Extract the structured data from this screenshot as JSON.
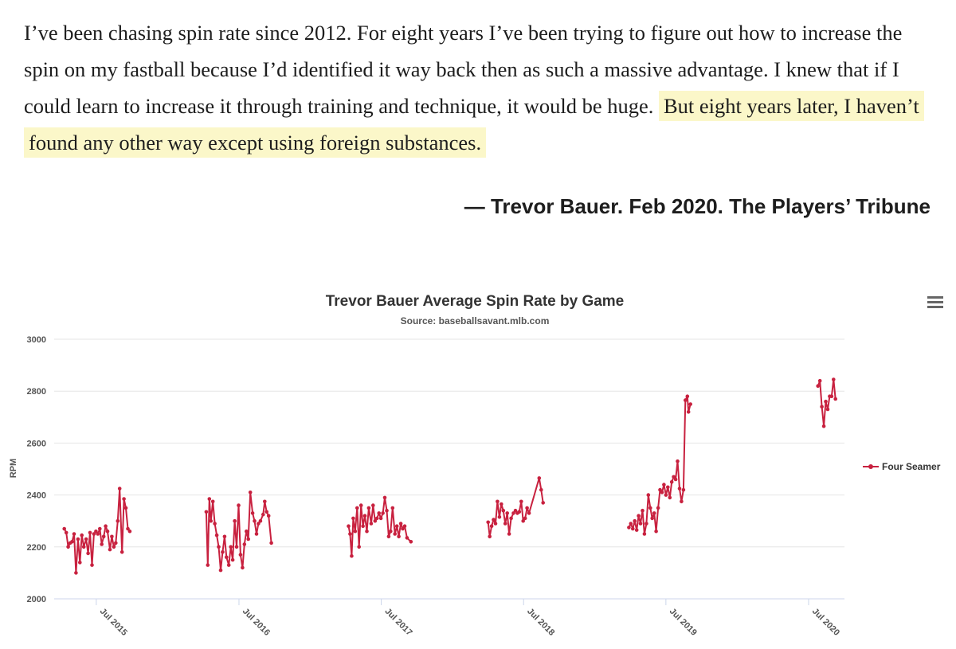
{
  "quote": {
    "text_plain": "I’ve been chasing spin rate since 2012. For eight years I’ve been trying to figure out how to increase the spin on my fastball because I’d identified it way back then as such a massive advantage. I knew that if I could learn to increase it through training and technique, it would be huge. ",
    "text_highlight": "But eight years later, I haven’t found any other way except using foreign substances.",
    "highlight_color": "#fbf7c9"
  },
  "attribution": "— Trevor Bauer. Feb 2020. The Players’ Tribune",
  "menu_icon": "hamburger-menu-icon",
  "chart_data": {
    "type": "line",
    "title": "Trevor Bauer Average Spin Rate by Game",
    "subtitle": "Source: baseballsavant.mlb.com",
    "ylabel": "RPM",
    "xlabel": "",
    "ylim": [
      2000,
      3000
    ],
    "yticks": [
      2000,
      2200,
      2400,
      2600,
      2800,
      3000
    ],
    "xticks": [
      "Jul 2015",
      "Jul 2016",
      "Jul 2017",
      "Jul 2018",
      "Jul 2019",
      "Jul 2020"
    ],
    "grid": true,
    "legend": "right",
    "color": "#c8213f",
    "series": [
      {
        "name": "Four Seamer",
        "segments": [
          [
            [
              "2015-04-10",
              2270
            ],
            [
              "2015-04-15",
              2255
            ],
            [
              "2015-04-20",
              2200
            ],
            [
              "2015-04-25",
              2215
            ],
            [
              "2015-04-30",
              2220
            ],
            [
              "2015-05-05",
              2250
            ],
            [
              "2015-05-10",
              2100
            ],
            [
              "2015-05-15",
              2230
            ],
            [
              "2015-05-20",
              2140
            ],
            [
              "2015-05-25",
              2245
            ],
            [
              "2015-05-30",
              2200
            ],
            [
              "2015-06-05",
              2230
            ],
            [
              "2015-06-10",
              2175
            ],
            [
              "2015-06-15",
              2255
            ],
            [
              "2015-06-20",
              2130
            ],
            [
              "2015-06-25",
              2250
            ],
            [
              "2015-06-30",
              2260
            ],
            [
              "2015-07-05",
              2250
            ],
            [
              "2015-07-10",
              2270
            ],
            [
              "2015-07-15",
              2210
            ],
            [
              "2015-07-20",
              2240
            ],
            [
              "2015-07-25",
              2280
            ],
            [
              "2015-07-30",
              2260
            ],
            [
              "2015-08-05",
              2190
            ],
            [
              "2015-08-10",
              2240
            ],
            [
              "2015-08-15",
              2200
            ],
            [
              "2015-08-20",
              2215
            ],
            [
              "2015-08-25",
              2300
            ],
            [
              "2015-08-30",
              2425
            ],
            [
              "2015-09-05",
              2180
            ],
            [
              "2015-09-10",
              2385
            ],
            [
              "2015-09-15",
              2350
            ],
            [
              "2015-09-20",
              2270
            ],
            [
              "2015-09-25",
              2260
            ]
          ],
          [
            [
              "2016-04-08",
              2335
            ],
            [
              "2016-04-12",
              2130
            ],
            [
              "2016-04-16",
              2385
            ],
            [
              "2016-04-20",
              2300
            ],
            [
              "2016-04-25",
              2375
            ],
            [
              "2016-04-30",
              2290
            ],
            [
              "2016-05-05",
              2245
            ],
            [
              "2016-05-10",
              2200
            ],
            [
              "2016-05-15",
              2110
            ],
            [
              "2016-05-20",
              2180
            ],
            [
              "2016-05-25",
              2240
            ],
            [
              "2016-05-30",
              2160
            ],
            [
              "2016-06-05",
              2130
            ],
            [
              "2016-06-10",
              2200
            ],
            [
              "2016-06-15",
              2150
            ],
            [
              "2016-06-20",
              2300
            ],
            [
              "2016-06-25",
              2200
            ],
            [
              "2016-06-30",
              2360
            ],
            [
              "2016-07-05",
              2170
            ],
            [
              "2016-07-10",
              2120
            ],
            [
              "2016-07-15",
              2210
            ],
            [
              "2016-07-20",
              2260
            ],
            [
              "2016-07-25",
              2230
            ],
            [
              "2016-07-30",
              2410
            ],
            [
              "2016-08-05",
              2330
            ],
            [
              "2016-08-10",
              2300
            ],
            [
              "2016-08-15",
              2250
            ],
            [
              "2016-08-20",
              2290
            ],
            [
              "2016-08-25",
              2300
            ],
            [
              "2016-09-01",
              2325
            ],
            [
              "2016-09-05",
              2375
            ],
            [
              "2016-09-10",
              2335
            ],
            [
              "2016-09-15",
              2320
            ],
            [
              "2016-09-22",
              2215
            ]
          ],
          [
            [
              "2017-04-08",
              2280
            ],
            [
              "2017-04-12",
              2250
            ],
            [
              "2017-04-16",
              2165
            ],
            [
              "2017-04-20",
              2310
            ],
            [
              "2017-04-25",
              2260
            ],
            [
              "2017-04-30",
              2350
            ],
            [
              "2017-05-05",
              2200
            ],
            [
              "2017-05-10",
              2360
            ],
            [
              "2017-05-15",
              2280
            ],
            [
              "2017-05-20",
              2320
            ],
            [
              "2017-05-25",
              2260
            ],
            [
              "2017-05-30",
              2350
            ],
            [
              "2017-06-05",
              2290
            ],
            [
              "2017-06-10",
              2360
            ],
            [
              "2017-06-15",
              2300
            ],
            [
              "2017-06-20",
              2310
            ],
            [
              "2017-06-25",
              2330
            ],
            [
              "2017-06-30",
              2310
            ],
            [
              "2017-07-05",
              2330
            ],
            [
              "2017-07-10",
              2390
            ],
            [
              "2017-07-15",
              2340
            ],
            [
              "2017-07-20",
              2240
            ],
            [
              "2017-07-25",
              2260
            ],
            [
              "2017-07-30",
              2350
            ],
            [
              "2017-08-05",
              2250
            ],
            [
              "2017-08-10",
              2280
            ],
            [
              "2017-08-15",
              2240
            ],
            [
              "2017-08-20",
              2290
            ],
            [
              "2017-08-25",
              2270
            ],
            [
              "2017-08-30",
              2280
            ],
            [
              "2017-09-05",
              2235
            ],
            [
              "2017-09-15",
              2220
            ]
          ],
          [
            [
              "2018-04-01",
              2295
            ],
            [
              "2018-04-05",
              2240
            ],
            [
              "2018-04-10",
              2280
            ],
            [
              "2018-04-15",
              2305
            ],
            [
              "2018-04-20",
              2290
            ],
            [
              "2018-04-25",
              2375
            ],
            [
              "2018-04-30",
              2315
            ],
            [
              "2018-05-05",
              2365
            ],
            [
              "2018-05-10",
              2340
            ],
            [
              "2018-05-15",
              2290
            ],
            [
              "2018-05-20",
              2330
            ],
            [
              "2018-05-25",
              2250
            ],
            [
              "2018-05-30",
              2310
            ],
            [
              "2018-06-05",
              2330
            ],
            [
              "2018-06-10",
              2340
            ],
            [
              "2018-06-15",
              2330
            ],
            [
              "2018-06-20",
              2335
            ],
            [
              "2018-06-25",
              2375
            ],
            [
              "2018-06-30",
              2300
            ],
            [
              "2018-07-05",
              2310
            ],
            [
              "2018-07-10",
              2350
            ],
            [
              "2018-07-15",
              2330
            ],
            [
              "2018-08-10",
              2465
            ],
            [
              "2018-08-15",
              2420
            ],
            [
              "2018-08-20",
              2370
            ]
          ],
          [
            [
              "2019-03-28",
              2275
            ],
            [
              "2019-04-02",
              2290
            ],
            [
              "2019-04-07",
              2270
            ],
            [
              "2019-04-12",
              2300
            ],
            [
              "2019-04-17",
              2265
            ],
            [
              "2019-04-22",
              2320
            ],
            [
              "2019-04-27",
              2290
            ],
            [
              "2019-05-02",
              2340
            ],
            [
              "2019-05-07",
              2250
            ],
            [
              "2019-05-12",
              2290
            ],
            [
              "2019-05-17",
              2400
            ],
            [
              "2019-05-22",
              2350
            ],
            [
              "2019-05-27",
              2310
            ],
            [
              "2019-06-01",
              2330
            ],
            [
              "2019-06-06",
              2260
            ],
            [
              "2019-06-11",
              2350
            ],
            [
              "2019-06-16",
              2420
            ],
            [
              "2019-06-21",
              2410
            ],
            [
              "2019-06-26",
              2440
            ],
            [
              "2019-07-01",
              2400
            ],
            [
              "2019-07-06",
              2430
            ],
            [
              "2019-07-11",
              2390
            ],
            [
              "2019-07-16",
              2450
            ],
            [
              "2019-07-21",
              2470
            ],
            [
              "2019-07-26",
              2460
            ],
            [
              "2019-07-31",
              2530
            ],
            [
              "2019-08-05",
              2425
            ],
            [
              "2019-08-10",
              2375
            ],
            [
              "2019-08-15",
              2420
            ],
            [
              "2019-08-20",
              2765
            ],
            [
              "2019-08-25",
              2780
            ],
            [
              "2019-08-28",
              2720
            ],
            [
              "2019-09-02",
              2750
            ]
          ],
          [
            [
              "2020-07-25",
              2820
            ],
            [
              "2020-07-30",
              2840
            ],
            [
              "2020-08-04",
              2740
            ],
            [
              "2020-08-09",
              2665
            ],
            [
              "2020-08-14",
              2760
            ],
            [
              "2020-08-19",
              2730
            ],
            [
              "2020-08-24",
              2780
            ],
            [
              "2020-08-29",
              2780
            ],
            [
              "2020-09-03",
              2845
            ],
            [
              "2020-09-08",
              2770
            ]
          ]
        ]
      }
    ]
  }
}
